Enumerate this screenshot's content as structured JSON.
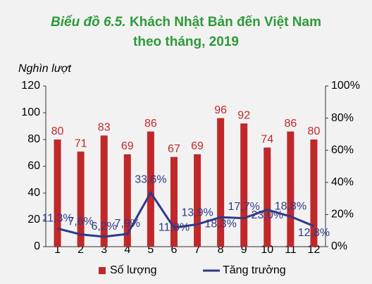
{
  "chart_data": {
    "type": "bar_line",
    "title_label": "Biểu đồ 6.5.",
    "title_line1": "Khách Nhật Bản đến Việt Nam",
    "title_line2": "theo tháng, 2019",
    "y_label": "Nghìn lượt",
    "categories": [
      "1",
      "2",
      "3",
      "4",
      "5",
      "6",
      "7",
      "8",
      "9",
      "10",
      "11",
      "12"
    ],
    "series": [
      {
        "name": "Số lượng",
        "color": "#c0282a",
        "type": "bar",
        "values": [
          80,
          71,
          83,
          69,
          86,
          67,
          69,
          96,
          92,
          74,
          86,
          80
        ]
      },
      {
        "name": "Tăng trưởng",
        "color": "#2e3a87",
        "type": "line",
        "axis": "y2",
        "values": [
          11.3,
          7.6,
          6.2,
          7.9,
          33.6,
          11.8,
          13.9,
          18.3,
          17.7,
          23.0,
          18.8,
          12.8
        ],
        "value_labels": [
          "11,3%",
          "7,6%",
          "6,2%",
          "7,9%",
          "33,6%",
          "11,8%",
          "13,9%",
          "18,3%",
          "17,7%",
          "23,0%",
          "18,8%",
          "12,8%"
        ]
      }
    ],
    "ylim": [
      0,
      120
    ],
    "yticks": [
      0,
      20,
      40,
      60,
      80,
      100,
      120
    ],
    "y2lim": [
      0,
      100
    ],
    "y2ticks": [
      {
        "value": 0,
        "label": "0%"
      },
      {
        "value": 20,
        "label": "20%"
      },
      {
        "value": 40,
        "label": "40%"
      },
      {
        "value": 60,
        "label": "60%"
      },
      {
        "value": 80,
        "label": "80%"
      },
      {
        "value": 100,
        "label": "100%"
      }
    ],
    "grid": false,
    "legend": "bottom"
  }
}
